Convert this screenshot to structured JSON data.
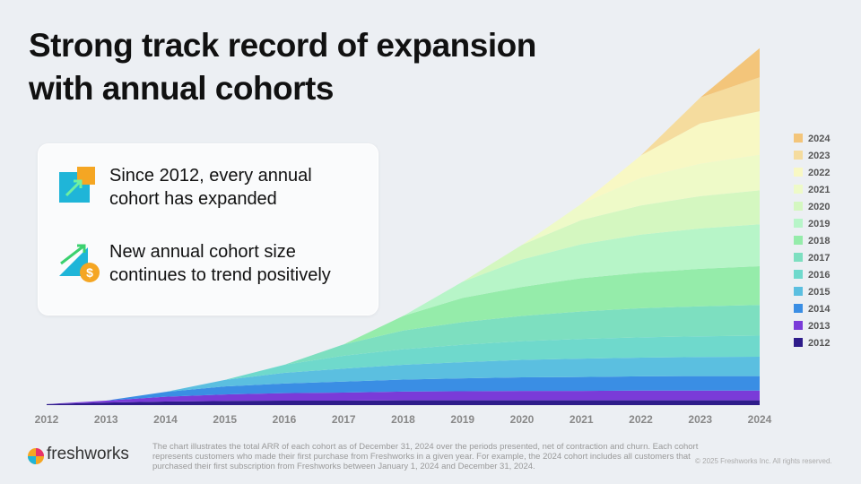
{
  "title": [
    "Strong track record of expansion",
    "with annual cohorts"
  ],
  "callouts": [
    [
      "Since 2012, every annual",
      "cohort has expanded"
    ],
    [
      "New annual cohort size",
      "continues to trend positively"
    ]
  ],
  "chart_data": {
    "type": "stacked-area",
    "x": [
      2012,
      2013,
      2014,
      2015,
      2016,
      2017,
      2018,
      2019,
      2020,
      2021,
      2022,
      2023,
      2024
    ],
    "xlim": [
      2012,
      2024
    ],
    "xticks": [
      2012,
      2013,
      2014,
      2015,
      2016,
      2017,
      2018,
      2019,
      2020,
      2021,
      2022,
      2023,
      2024
    ],
    "ylim": [
      0,
      111
    ],
    "series": [
      {
        "name": "2012",
        "color": "#2e1c8a",
        "values": [
          0.3,
          0.8,
          1.1,
          1.3,
          1.4,
          1.4,
          1.5,
          1.5,
          1.5,
          1.5,
          1.5,
          1.5,
          1.5
        ]
      },
      {
        "name": "2013",
        "color": "#7a3bd8",
        "values": [
          0,
          0.6,
          1.5,
          2,
          2.3,
          2.5,
          2.7,
          2.8,
          2.9,
          2.9,
          3,
          3,
          3
        ]
      },
      {
        "name": "2014",
        "color": "#3a8ee4",
        "values": [
          0,
          0,
          1.5,
          2.5,
          3,
          3.4,
          3.7,
          4,
          4.2,
          4.3,
          4.4,
          4.5,
          4.5
        ]
      },
      {
        "name": "2015",
        "color": "#5bbfe0",
        "values": [
          0,
          0,
          0,
          2,
          3.3,
          4,
          4.6,
          5,
          5.4,
          5.7,
          5.8,
          5.9,
          6
        ]
      },
      {
        "name": "2016",
        "color": "#6fd9cc",
        "values": [
          0,
          0,
          0,
          0,
          2.5,
          4,
          4.8,
          5.4,
          5.8,
          6.1,
          6.3,
          6.4,
          6.5
        ]
      },
      {
        "name": "2017",
        "color": "#7ddfc0",
        "values": [
          0,
          0,
          0,
          0,
          0,
          3.5,
          5.8,
          7,
          7.8,
          8.5,
          9,
          9.3,
          9.5
        ]
      },
      {
        "name": "2018",
        "color": "#95ecaa",
        "values": [
          0,
          0,
          0,
          0,
          0,
          0,
          4.5,
          7.5,
          9,
          10.3,
          11,
          11.6,
          12
        ]
      },
      {
        "name": "2019",
        "color": "#b7f5c8",
        "values": [
          0,
          0,
          0,
          0,
          0,
          0,
          0,
          5,
          8.5,
          10.5,
          11.8,
          12.5,
          13
        ]
      },
      {
        "name": "2020",
        "color": "#d4f7c0",
        "values": [
          0,
          0,
          0,
          0,
          0,
          0,
          0,
          0,
          4.5,
          7.5,
          9,
          10,
          10.5
        ]
      },
      {
        "name": "2021",
        "color": "#eefac8",
        "values": [
          0,
          0,
          0,
          0,
          0,
          0,
          0,
          0,
          0,
          5,
          8.5,
          10,
          11
        ]
      },
      {
        "name": "2022",
        "color": "#f8f8c4",
        "values": [
          0,
          0,
          0,
          0,
          0,
          0,
          0,
          0,
          0,
          0,
          7,
          12.5,
          13.5
        ]
      },
      {
        "name": "2023",
        "color": "#f5dc9e",
        "values": [
          0,
          0,
          0,
          0,
          0,
          0,
          0,
          0,
          0,
          0,
          0,
          8,
          10.5
        ]
      },
      {
        "name": "2024",
        "color": "#f3c57a",
        "values": [
          0,
          0,
          0,
          0,
          0,
          0,
          0,
          0,
          0,
          0,
          0,
          0,
          9
        ]
      }
    ]
  },
  "footnote": [
    "The chart illustrates the total ARR of each cohort as of December 31, 2024 over the periods presented, net of contraction and churn. Each cohort",
    "represents customers who made their first purchase from Freshworks in a given year. For example, the 2024 cohort includes all customers that",
    "purchased their first subscription from Freshworks between January 1, 2024 and December 31, 2024."
  ],
  "logo": "freshworks",
  "copyright": "© 2025 Freshworks Inc. All rights reserved."
}
